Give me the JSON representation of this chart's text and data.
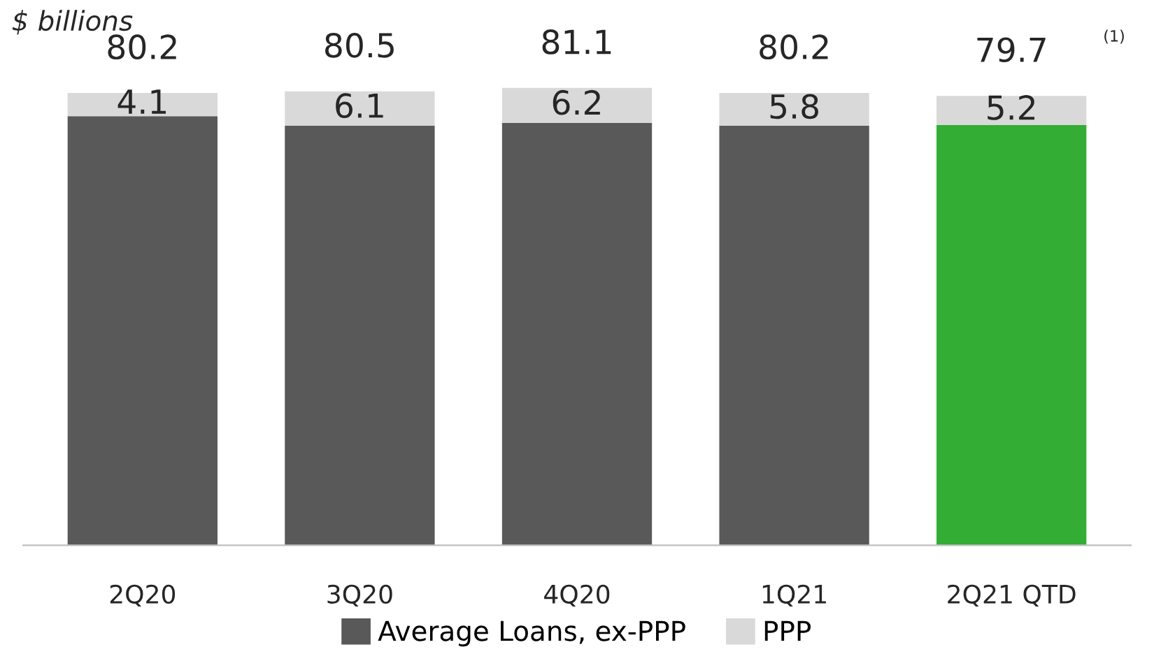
{
  "chart_data": {
    "type": "bar",
    "stacked": true,
    "title": "$ billions",
    "categories": [
      "2Q20",
      "3Q20",
      "4Q20",
      "1Q21",
      "2Q21 QTD"
    ],
    "series": [
      {
        "name": "Average Loans, ex-PPP",
        "color": "#595959",
        "colors": [
          "#595959",
          "#595959",
          "#595959",
          "#595959",
          "#33ad33"
        ],
        "values": [
          76.1,
          74.4,
          74.9,
          74.4,
          74.5
        ]
      },
      {
        "name": "PPP",
        "color": "#d9d9d9",
        "values": [
          4.1,
          6.1,
          6.2,
          5.8,
          5.2
        ],
        "value_labels": [
          "4.1",
          "6.1",
          "6.2",
          "5.8",
          "5.2"
        ]
      }
    ],
    "totals": [
      "80.2",
      "80.5",
      "81.1",
      "80.2",
      "79.7"
    ],
    "annotations": [
      "(1)"
    ],
    "grid": false,
    "legend": "bottom"
  }
}
